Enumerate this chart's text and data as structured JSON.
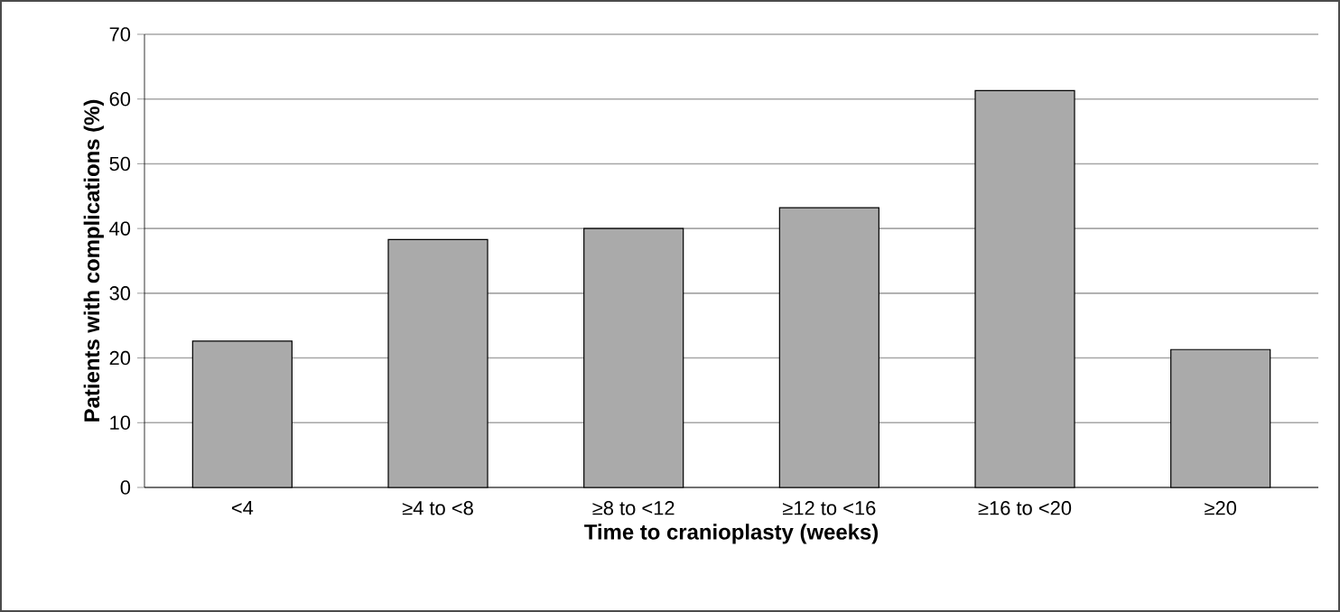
{
  "chart_data": {
    "type": "bar",
    "xlabel": "Time to cranioplasty (weeks)",
    "ylabel": "Patients with complications (%)",
    "categories": [
      "<4",
      "≥4 to <8",
      "≥8 to <12",
      "≥12 to <16",
      "≥16 to <20",
      "≥20"
    ],
    "values": [
      22.6,
      38.3,
      40,
      43.2,
      61.3,
      21.3
    ],
    "color": "#aaaaaa",
    "ylim": [
      0,
      70
    ],
    "yticks": [
      0,
      10,
      20,
      30,
      40,
      50,
      60,
      70
    ],
    "grid": "y"
  }
}
